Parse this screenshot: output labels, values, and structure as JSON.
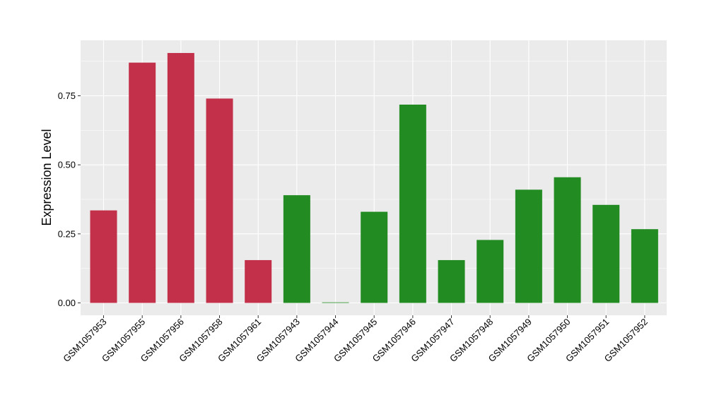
{
  "chart_data": {
    "type": "bar",
    "title": "",
    "xlabel": "",
    "ylabel": "Expression Level",
    "ylim": [
      0,
      0.95
    ],
    "yticks": [
      0.0,
      0.25,
      0.5,
      0.75
    ],
    "ytick_labels": [
      "0.00",
      "0.25",
      "0.50",
      "0.75"
    ],
    "grid": true,
    "colors": {
      "group_a": "#c3304a",
      "group_b": "#228b22",
      "panel_background": "#ebebeb",
      "gridline": "#ffffff"
    },
    "categories": [
      "GSM1057953",
      "GSM1057955",
      "GSM1057956",
      "GSM1057958",
      "GSM1057961",
      "GSM1057943",
      "GSM1057944",
      "GSM1057945",
      "GSM1057946",
      "GSM1057947",
      "GSM1057948",
      "GSM1057949",
      "GSM1057950",
      "GSM1057951",
      "GSM1057952"
    ],
    "values": [
      0.335,
      0.87,
      0.905,
      0.74,
      0.155,
      0.39,
      0.002,
      0.33,
      0.718,
      0.155,
      0.228,
      0.41,
      0.455,
      0.355,
      0.267
    ],
    "bar_groups": [
      "group_a",
      "group_a",
      "group_a",
      "group_a",
      "group_a",
      "group_b",
      "group_b",
      "group_b",
      "group_b",
      "group_b",
      "group_b",
      "group_b",
      "group_b",
      "group_b",
      "group_b"
    ]
  }
}
